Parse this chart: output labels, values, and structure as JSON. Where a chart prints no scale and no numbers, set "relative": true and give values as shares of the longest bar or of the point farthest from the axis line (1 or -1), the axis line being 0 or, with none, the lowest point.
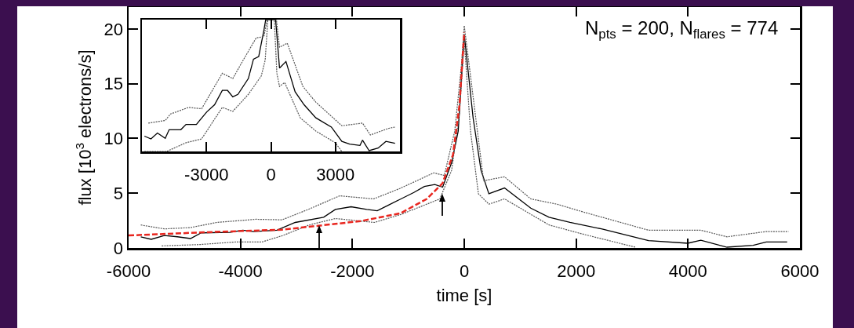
{
  "chart_data": [
    {
      "type": "line",
      "xlabel": "time [s]",
      "ylabel": "flux [10$^{3}$ electrons/s]",
      "xlim": [
        -6000,
        6000
      ],
      "xticks": [
        -6000,
        -4000,
        -2000,
        0,
        2000,
        4000,
        6000
      ],
      "ylim": [
        0,
        22
      ],
      "yticks": [
        0,
        5,
        10,
        15,
        20
      ],
      "grid": false,
      "annotations": [
        "N$_{pts}$ = 200, N$_{flares}$ = 774"
      ],
      "series": [
        {
          "color": "#000000",
          "line_style": "solid",
          "x": [
            -5782,
            -5595,
            -5361,
            -5127,
            -4893,
            -4706,
            -4192,
            -3958,
            -3771,
            -3350,
            -3022,
            -2514,
            -2304,
            -2023,
            -1743,
            -1556,
            -1368,
            -900,
            -713,
            -526,
            -386,
            -225,
            -108,
            -52,
            0,
            159,
            299,
            440,
            720,
            1189,
            1516,
            1890,
            2452,
            3294,
            3996,
            4229,
            4697,
            5165,
            5399,
            5773
          ],
          "values": [
            1.02,
            0.79,
            1.14,
            1.02,
            0.86,
            1.38,
            1.43,
            1.62,
            1.5,
            1.62,
            2.33,
            2.81,
            3.52,
            3.76,
            3.52,
            3.4,
            3.88,
            5.07,
            5.62,
            5.79,
            5.55,
            7.81,
            10.67,
            15.4,
            19.5,
            11.86,
            7.1,
            4.95,
            5.48,
            3.64,
            2.81,
            2.33,
            1.74,
            0.67,
            0.43,
            0.71,
            0.07,
            0.24,
            0.55,
            0.55
          ]
        },
        {
          "color": "#555555",
          "line_style": "dotted",
          "x": [
            -5782,
            -5361,
            -4893,
            -4426,
            -3724,
            -3256,
            -2789,
            -2228,
            -1620,
            -1152,
            -544,
            -357,
            -170,
            -52,
            0,
            206,
            346,
            720,
            1189,
            1656,
            2124,
            3294,
            4229,
            4697,
            5399,
            5796
          ],
          "values": [
            2.1,
            1.74,
            1.86,
            2.33,
            2.62,
            2.57,
            3.52,
            4.76,
            4.48,
            5.43,
            6.86,
            6.62,
            10.67,
            16.6,
            20.3,
            11.86,
            6.14,
            6.5,
            4.48,
            4.0,
            3.29,
            1.62,
            1.62,
            1.02,
            1.5,
            1.5
          ]
        },
        {
          "color": "#555555",
          "line_style": "dotted",
          "x": [
            -5408,
            -4735,
            -4080,
            -3614,
            -3240,
            -2772,
            -2304,
            -1606,
            -1138,
            -670,
            -436,
            -225,
            -85,
            0,
            112,
            253,
            440,
            720,
            1516,
            2124,
            3060
          ],
          "values": [
            0.19,
            0.31,
            0.55,
            0.55,
            1.14,
            2.1,
            2.69,
            2.33,
            3.05,
            4.0,
            4.48,
            7.1,
            12.3,
            19.0,
            10.67,
            4.95,
            4.0,
            4.48,
            2.1,
            1.26,
            0.07
          ]
        },
        {
          "color": "#e8261f",
          "line_style": "dashed",
          "x": [
            -6000,
            -4659,
            -3256,
            -1853,
            -1138,
            -670,
            -389,
            -201,
            -85,
            0
          ],
          "values": [
            1.14,
            1.43,
            1.67,
            2.45,
            3.17,
            4.48,
            5.9,
            8.52,
            13.05,
            19.7
          ]
        }
      ]
    },
    {
      "type": "line",
      "relative": true,
      "xlim": [
        -6000,
        6000
      ],
      "xticks": [
        -3000,
        0,
        3000
      ],
      "grid": false,
      "series": [
        {
          "color": "#000000",
          "line_style": "solid",
          "x": [
            -5884,
            -5580,
            -5279,
            -4916,
            -4735,
            -4192,
            -3949,
            -3467,
            -2985,
            -2623,
            -2261,
            -2018,
            -1775,
            -1536,
            -1051,
            -812,
            -569,
            -326,
            -243,
            217,
            399,
            699,
            1123,
            1543,
            2087,
            2811,
            3297,
            3659,
            4141,
            4261,
            4565,
            4985,
            5348,
            5772
          ],
          "values": [
            0.116,
            0.095,
            0.14,
            0.1,
            0.165,
            0.165,
            0.205,
            0.205,
            0.3,
            0.354,
            0.463,
            0.463,
            0.414,
            0.433,
            0.553,
            0.7,
            0.72,
            0.92,
            1.0,
            1.0,
            0.632,
            0.682,
            0.453,
            0.354,
            0.255,
            0.185,
            0.076,
            0.056,
            0.046,
            0.086,
            0.006,
            0.026,
            0.076,
            0.062
          ]
        },
        {
          "color": "#555555",
          "line_style": "dotted",
          "x": [
            -5703,
            -4916,
            -4674,
            -3830,
            -3224,
            -2261,
            -1775,
            -1293,
            -688,
            -326,
            -181,
            254,
            399,
            761,
            1485,
            2087,
            3297,
            4261,
            4623,
            5471,
            5772
          ],
          "values": [
            0.215,
            0.235,
            0.284,
            0.334,
            0.324,
            0.593,
            0.553,
            0.692,
            0.861,
            0.871,
            1.0,
            1.0,
            0.791,
            0.821,
            0.493,
            0.374,
            0.195,
            0.215,
            0.125,
            0.175,
            0.185
          ]
        },
        {
          "color": "#555555",
          "line_style": "dotted",
          "x": [
            -5884,
            -4855,
            -3949,
            -3224,
            -2743,
            -2261,
            -1775,
            -1051,
            -449,
            -268,
            -145,
            156,
            275,
            399,
            638,
            1362,
            2087,
            2992,
            3297
          ],
          "values": [
            0,
            0,
            0.066,
            0.095,
            0.215,
            0.334,
            0.304,
            0.433,
            0.573,
            0.692,
            1.0,
            1.0,
            0.593,
            0.493,
            0.523,
            0.255,
            0.155,
            0.066,
            0
          ]
        }
      ]
    }
  ]
}
